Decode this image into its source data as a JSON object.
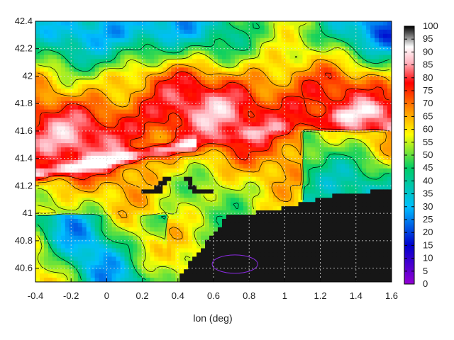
{
  "chart_data": {
    "type": "heatmap",
    "title": "",
    "xlabel": "lon (deg)",
    "ylabel": "",
    "xlim": [
      -0.4,
      1.6
    ],
    "ylim": [
      40.5,
      42.4
    ],
    "x_ticks": [
      "-0.4",
      "-0.2",
      "0",
      "0.2",
      "0.4",
      "0.6",
      "0.8",
      "1",
      "1.2",
      "1.4",
      "1.6"
    ],
    "y_ticks": [
      "40.6",
      "40.8",
      "41",
      "41.2",
      "41.4",
      "41.6",
      "41.8",
      "42",
      "42.2",
      "42.4"
    ],
    "colorbar": {
      "min": 0,
      "max": 100,
      "ticks": [
        "0",
        "5",
        "10",
        "15",
        "20",
        "25",
        "30",
        "35",
        "40",
        "45",
        "50",
        "55",
        "60",
        "65",
        "70",
        "75",
        "80",
        "85",
        "90",
        "95",
        "100"
      ],
      "palette": [
        "#9400d3",
        "#0000cd",
        "#00bfff",
        "#00cd66",
        "#ffff00",
        "#ff8c00",
        "#ff0000",
        "#ffb6c1",
        "#ffffff",
        "#000000"
      ]
    },
    "grid": true,
    "contours": true,
    "land_value_color": "#141414"
  }
}
